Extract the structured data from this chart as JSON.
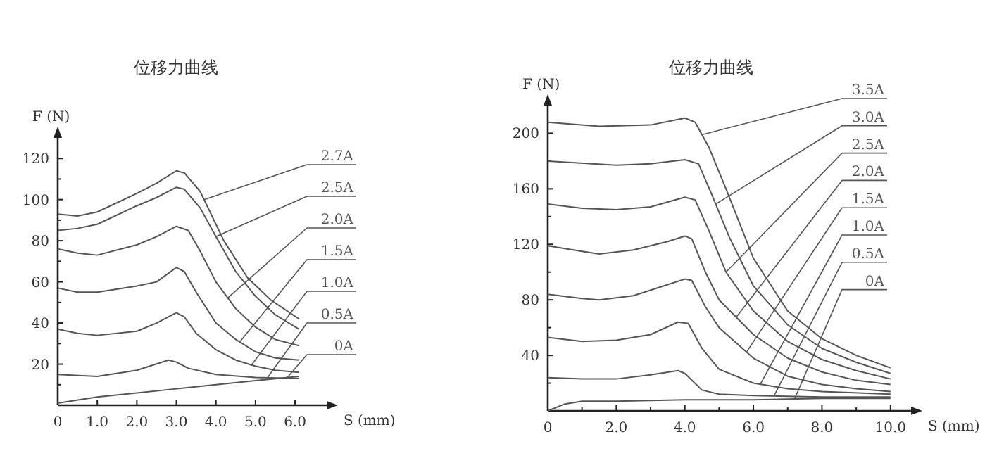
{
  "chart_data": [
    {
      "type": "line",
      "title": "位移力曲线",
      "xlabel": "S (mm)",
      "ylabel": "F (N)",
      "xlim": [
        0,
        6.8
      ],
      "ylim": [
        0,
        130
      ],
      "xticks": [
        {
          "value": 0,
          "label": "0"
        },
        {
          "value": 1,
          "label": "1.0"
        },
        {
          "value": 2,
          "label": "2.0"
        },
        {
          "value": 3,
          "label": "3.0"
        },
        {
          "value": 4,
          "label": "4.0"
        },
        {
          "value": 5,
          "label": "5.0"
        },
        {
          "value": 6,
          "label": "6.0"
        }
      ],
      "yticks": [
        {
          "value": 10,
          "label": null
        },
        20,
        {
          "value": 30,
          "label": null
        },
        40,
        {
          "value": 50,
          "label": null
        },
        60,
        {
          "value": 70,
          "label": null
        },
        80,
        {
          "value": 90,
          "label": null
        },
        100,
        {
          "value": 110,
          "label": null
        },
        120
      ],
      "series": [
        {
          "name": "2.7A",
          "color": "#555555",
          "x": [
            0,
            0.5,
            1,
            2,
            2.5,
            3,
            3.2,
            3.6,
            4.2,
            4.8,
            5.4,
            6.1
          ],
          "values": [
            93,
            92,
            94,
            103,
            108,
            114,
            113,
            104,
            80,
            62,
            51,
            42
          ]
        },
        {
          "name": "2.5A",
          "color": "#555555",
          "x": [
            0,
            0.5,
            1,
            2,
            2.5,
            3,
            3.2,
            3.6,
            4,
            4.5,
            5,
            5.5,
            6.1
          ],
          "values": [
            85,
            86,
            88,
            97,
            101,
            106,
            105,
            96,
            82,
            65,
            53,
            44,
            37
          ]
        },
        {
          "name": "2.0A",
          "color": "#555555",
          "x": [
            0,
            0.5,
            1,
            2,
            2.5,
            3,
            3.3,
            3.6,
            4,
            4.5,
            5,
            5.5,
            6.1
          ],
          "values": [
            76,
            74,
            73,
            78,
            82,
            87,
            85,
            75,
            60,
            47,
            38,
            32,
            29
          ]
        },
        {
          "name": "1.5A",
          "color": "#555555",
          "x": [
            0,
            0.5,
            1,
            2,
            2.5,
            3,
            3.2,
            3.5,
            4,
            4.5,
            5,
            5.5,
            6.1
          ],
          "values": [
            57,
            55,
            55,
            58,
            60,
            67,
            65,
            55,
            40,
            32,
            26,
            23,
            22
          ]
        },
        {
          "name": "1.0A",
          "color": "#555555",
          "x": [
            0,
            0.5,
            1,
            2,
            2.5,
            3,
            3.2,
            3.5,
            4,
            4.5,
            5,
            5.5,
            6.1
          ],
          "values": [
            37,
            35,
            34,
            36,
            40,
            45,
            43,
            35,
            27,
            22,
            19,
            17,
            16
          ]
        },
        {
          "name": "0.5A",
          "color": "#555555",
          "x": [
            0,
            1,
            2,
            2.8,
            3,
            3.3,
            4,
            5,
            6.1
          ],
          "values": [
            15,
            14,
            17,
            22,
            21,
            18,
            15,
            13.5,
            13
          ]
        },
        {
          "name": "0A",
          "color": "#555555",
          "x": [
            0,
            1,
            2,
            3,
            4,
            5,
            6.1
          ],
          "values": [
            1,
            4,
            6,
            8,
            10,
            12,
            14
          ]
        }
      ]
    },
    {
      "type": "line",
      "title": "位移力曲线",
      "xlabel": "S (mm)",
      "ylabel": "F (N)",
      "xlim": [
        0,
        10.6
      ],
      "ylim": [
        0,
        220
      ],
      "xticks": [
        {
          "value": 0,
          "label": "0"
        },
        {
          "value": 1,
          "label": null
        },
        {
          "value": 2,
          "label": "2.0"
        },
        {
          "value": 3,
          "label": null
        },
        {
          "value": 4,
          "label": "4.0"
        },
        {
          "value": 5,
          "label": null
        },
        {
          "value": 6,
          "label": "6.0"
        },
        {
          "value": 7,
          "label": null
        },
        {
          "value": 8,
          "label": "8.0"
        },
        {
          "value": 9,
          "label": null
        },
        {
          "value": 10,
          "label": "10.0"
        }
      ],
      "yticks": [
        {
          "value": 20,
          "label": null
        },
        40,
        {
          "value": 60,
          "label": null
        },
        80,
        {
          "value": 100,
          "label": null
        },
        120,
        {
          "value": 140,
          "label": null
        },
        160,
        {
          "value": 180,
          "label": null
        },
        200
      ],
      "series": [
        {
          "name": "3.5A",
          "color": "#555555",
          "x": [
            0,
            1.5,
            3,
            4,
            4.3,
            4.7,
            5.2,
            6,
            7,
            8,
            9,
            10
          ],
          "values": [
            208,
            205,
            206,
            211,
            208,
            190,
            160,
            110,
            72,
            52,
            40,
            31
          ]
        },
        {
          "name": "3.0A",
          "color": "#555555",
          "x": [
            0,
            2,
            3,
            4,
            4.4,
            4.8,
            5.3,
            6,
            7,
            8,
            9,
            10
          ],
          "values": [
            180,
            177,
            178,
            181,
            178,
            155,
            125,
            90,
            62,
            45,
            35,
            27
          ]
        },
        {
          "name": "2.5A",
          "color": "#555555",
          "x": [
            0,
            1,
            2,
            3,
            4,
            4.3,
            4.7,
            5.2,
            6,
            7,
            8,
            9,
            10
          ],
          "values": [
            149,
            146,
            145,
            147,
            154,
            152,
            130,
            100,
            72,
            50,
            37,
            29,
            23
          ]
        },
        {
          "name": "2.0A",
          "color": "#555555",
          "x": [
            0,
            1,
            1.5,
            2.5,
            3.5,
            4,
            4.2,
            4.6,
            5,
            6,
            7,
            8,
            9,
            10
          ],
          "values": [
            119,
            115,
            113,
            116,
            122,
            126,
            124,
            100,
            80,
            55,
            38,
            28,
            22,
            19
          ]
        },
        {
          "name": "1.5A",
          "color": "#555555",
          "x": [
            0,
            1,
            1.5,
            2.5,
            3.5,
            4,
            4.2,
            4.6,
            5,
            6,
            7,
            8,
            9,
            10
          ],
          "values": [
            84,
            81,
            80,
            83,
            91,
            95,
            94,
            75,
            60,
            38,
            25,
            19,
            16,
            14
          ]
        },
        {
          "name": "1.0A",
          "color": "#555555",
          "x": [
            0,
            1,
            2,
            3,
            3.8,
            4.1,
            4.5,
            5,
            6,
            7,
            8,
            10
          ],
          "values": [
            53,
            50,
            51,
            55,
            64,
            63,
            45,
            30,
            20,
            16,
            14,
            12
          ]
        },
        {
          "name": "0.5A",
          "color": "#555555",
          "x": [
            0,
            1,
            2,
            3,
            3.8,
            4,
            4.5,
            5,
            6,
            8,
            10
          ],
          "values": [
            24,
            23,
            23,
            26,
            29,
            27,
            15,
            12,
            11,
            10,
            10
          ]
        },
        {
          "name": "0A",
          "color": "#555555",
          "x": [
            0,
            0.5,
            1,
            2,
            4,
            6,
            8,
            10
          ],
          "values": [
            0,
            5,
            7,
            7,
            8,
            8,
            9,
            9
          ]
        }
      ]
    }
  ]
}
